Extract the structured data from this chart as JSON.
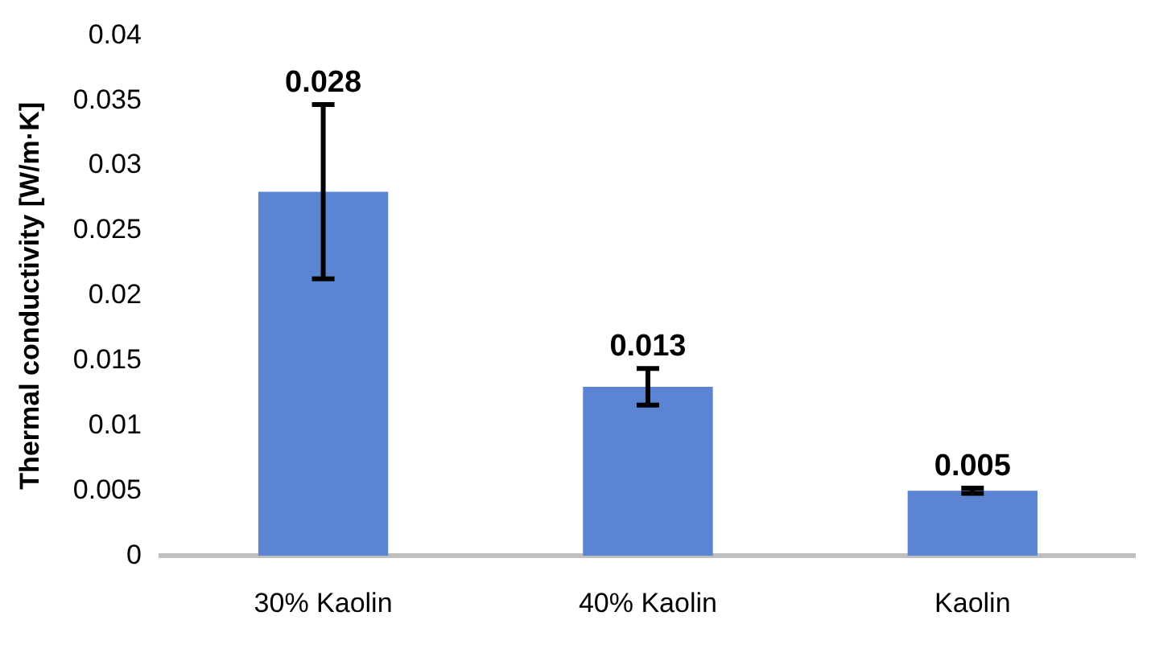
{
  "chart_data": {
    "type": "bar",
    "ylabel": "Thermal conductivity [W/m·K]",
    "categories": [
      "30% Kaolin",
      "40% Kaolin",
      "Kaolin"
    ],
    "values": [
      0.028,
      0.013,
      0.005
    ],
    "color": "#5b84d2",
    "errors": [
      0.0067,
      0.0014,
      0.0002
    ],
    "data_labels": true,
    "ylim": [
      0,
      0.04
    ],
    "yticks": [
      0,
      0.005,
      0.01,
      0.015,
      0.02,
      0.025,
      0.03,
      0.035,
      0.04
    ],
    "grid": false,
    "legend": false
  }
}
